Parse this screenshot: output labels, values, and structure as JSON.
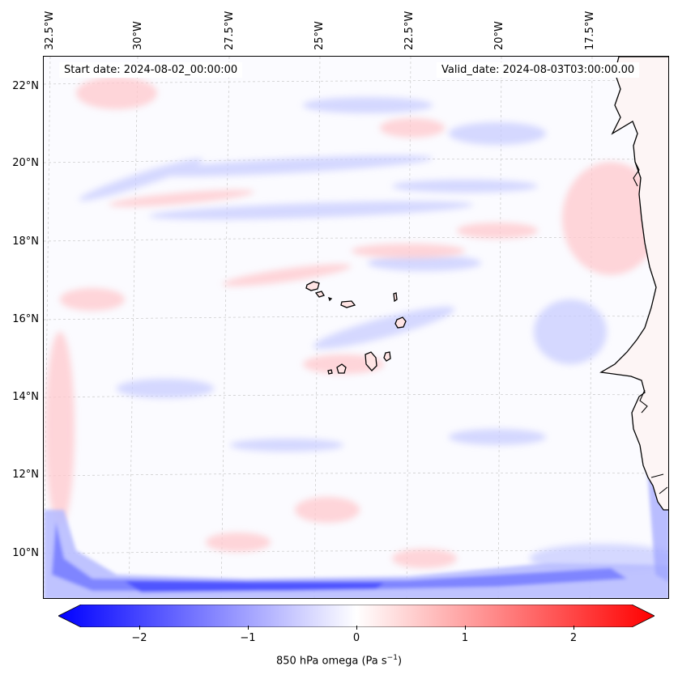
{
  "map": {
    "start_date": "Start date: 2024-08-02_00:00:00",
    "valid_date": "Valid_date: 2024-08-03T03:00:00.00",
    "lon_labels": [
      "32.5°W",
      "30°W",
      "27.5°W",
      "25°W",
      "22.5°W",
      "20°W",
      "17.5°W"
    ],
    "lat_labels": [
      "22°N",
      "20°N",
      "18°N",
      "16°N",
      "14°N",
      "12°N",
      "10°N"
    ],
    "colors": {
      "negative": "#0000ff",
      "positive": "#ff0000",
      "neutral": "#ffffff",
      "coast": "#000000",
      "grid": "#c8c8c8"
    }
  },
  "colorbar": {
    "label": "850 hPa omega (Pa s",
    "label_exp": "−1",
    "label_end": ")",
    "ticks": [
      "−2",
      "−1",
      "0",
      "1",
      "2"
    ],
    "range": [
      -2.7,
      2.7
    ]
  }
}
